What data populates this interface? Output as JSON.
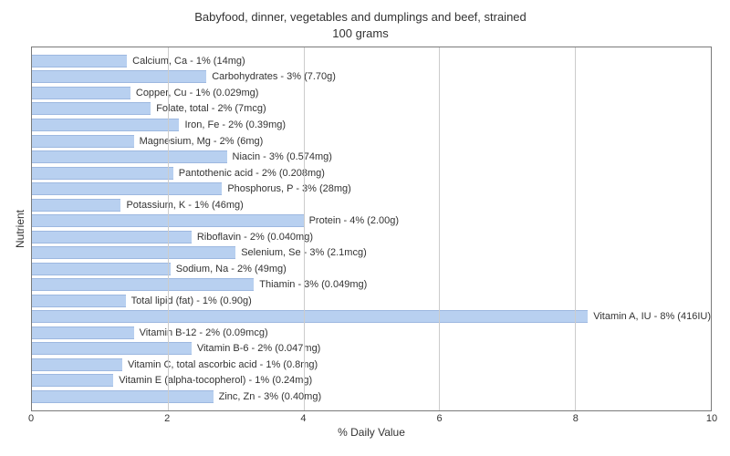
{
  "chart": {
    "type": "bar",
    "title_line1": "Babyfood, dinner, vegetables and dumplings and beef, strained",
    "title_line2": "100 grams",
    "title_fontsize": 13,
    "xlabel": "% Daily Value",
    "ylabel": "Nutrient",
    "label_fontsize": 12,
    "bar_label_fontsize": 11,
    "xlim": [
      0,
      10
    ],
    "xtick_step": 2,
    "xticks": [
      0,
      2,
      4,
      6,
      8,
      10
    ],
    "background_color": "#ffffff",
    "border_color": "#7a7a7a",
    "grid_color": "#cccccc",
    "bar_color": "#b8d0f0",
    "bar_border_color": "#9db8e0",
    "text_color": "#333333",
    "bars": [
      {
        "label": "Calcium, Ca - 1% (14mg)",
        "value": 1.4
      },
      {
        "label": "Carbohydrates - 3% (7.70g)",
        "value": 2.57
      },
      {
        "label": "Copper, Cu - 1% (0.029mg)",
        "value": 1.45
      },
      {
        "label": "Folate, total - 2% (7mcg)",
        "value": 1.75
      },
      {
        "label": "Iron, Fe - 2% (0.39mg)",
        "value": 2.17
      },
      {
        "label": "Magnesium, Mg - 2% (6mg)",
        "value": 1.5
      },
      {
        "label": "Niacin - 3% (0.574mg)",
        "value": 2.87
      },
      {
        "label": "Pantothenic acid - 2% (0.208mg)",
        "value": 2.08
      },
      {
        "label": "Phosphorus, P - 3% (28mg)",
        "value": 2.8
      },
      {
        "label": "Potassium, K - 1% (46mg)",
        "value": 1.31
      },
      {
        "label": "Protein - 4% (2.00g)",
        "value": 4.0
      },
      {
        "label": "Riboflavin - 2% (0.040mg)",
        "value": 2.35
      },
      {
        "label": "Selenium, Se - 3% (2.1mcg)",
        "value": 3.0
      },
      {
        "label": "Sodium, Na - 2% (49mg)",
        "value": 2.04
      },
      {
        "label": "Thiamin - 3% (0.049mg)",
        "value": 3.27
      },
      {
        "label": "Total lipid (fat) - 1% (0.90g)",
        "value": 1.38
      },
      {
        "label": "Vitamin A, IU - 8% (416IU)",
        "value": 8.32
      },
      {
        "label": "Vitamin B-12 - 2% (0.09mcg)",
        "value": 1.5
      },
      {
        "label": "Vitamin B-6 - 2% (0.047mg)",
        "value": 2.35
      },
      {
        "label": "Vitamin C, total ascorbic acid - 1% (0.8mg)",
        "value": 1.33
      },
      {
        "label": "Vitamin E (alpha-tocopherol) - 1% (0.24mg)",
        "value": 1.2
      },
      {
        "label": "Zinc, Zn - 3% (0.40mg)",
        "value": 2.67
      }
    ]
  }
}
